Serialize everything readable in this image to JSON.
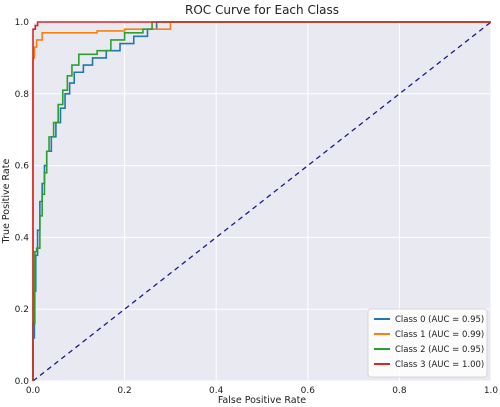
{
  "chart_data": {
    "type": "line",
    "title": "ROC Curve for Each Class",
    "xlabel": "False Positive Rate",
    "ylabel": "True Positive Rate",
    "xlim": [
      0,
      1
    ],
    "ylim": [
      0,
      1
    ],
    "xticks": [
      "0.0",
      "0.2",
      "0.4",
      "0.6",
      "0.8",
      "1.0"
    ],
    "yticks": [
      "0.0",
      "0.2",
      "0.4",
      "0.6",
      "0.8",
      "1.0"
    ],
    "grid": true,
    "legend_position": "lower-right",
    "series": [
      {
        "name": "Class 0 (AUC = 0.95)",
        "color": "#1f77b4",
        "points": [
          [
            0,
            0
          ],
          [
            0,
            0.12
          ],
          [
            0.003,
            0.12
          ],
          [
            0.003,
            0.25
          ],
          [
            0.006,
            0.25
          ],
          [
            0.006,
            0.35
          ],
          [
            0.01,
            0.35
          ],
          [
            0.01,
            0.42
          ],
          [
            0.015,
            0.42
          ],
          [
            0.015,
            0.5
          ],
          [
            0.02,
            0.5
          ],
          [
            0.02,
            0.55
          ],
          [
            0.025,
            0.55
          ],
          [
            0.025,
            0.6
          ],
          [
            0.03,
            0.6
          ],
          [
            0.03,
            0.64
          ],
          [
            0.04,
            0.64
          ],
          [
            0.04,
            0.68
          ],
          [
            0.05,
            0.68
          ],
          [
            0.05,
            0.72
          ],
          [
            0.06,
            0.72
          ],
          [
            0.06,
            0.76
          ],
          [
            0.07,
            0.76
          ],
          [
            0.07,
            0.8
          ],
          [
            0.08,
            0.8
          ],
          [
            0.08,
            0.83
          ],
          [
            0.09,
            0.83
          ],
          [
            0.09,
            0.86
          ],
          [
            0.11,
            0.86
          ],
          [
            0.11,
            0.88
          ],
          [
            0.13,
            0.88
          ],
          [
            0.13,
            0.9
          ],
          [
            0.16,
            0.9
          ],
          [
            0.16,
            0.92
          ],
          [
            0.19,
            0.92
          ],
          [
            0.19,
            0.94
          ],
          [
            0.22,
            0.94
          ],
          [
            0.22,
            0.96
          ],
          [
            0.25,
            0.96
          ],
          [
            0.25,
            0.98
          ],
          [
            0.27,
            0.98
          ],
          [
            0.27,
            1.0
          ],
          [
            1.0,
            1.0
          ]
        ]
      },
      {
        "name": "Class 1 (AUC = 0.99)",
        "color": "#ff7f0e",
        "points": [
          [
            0,
            0
          ],
          [
            0,
            0.9
          ],
          [
            0.003,
            0.9
          ],
          [
            0.003,
            0.93
          ],
          [
            0.008,
            0.93
          ],
          [
            0.008,
            0.95
          ],
          [
            0.02,
            0.95
          ],
          [
            0.02,
            0.97
          ],
          [
            0.14,
            0.97
          ],
          [
            0.14,
            0.975
          ],
          [
            0.2,
            0.975
          ],
          [
            0.2,
            0.98
          ],
          [
            0.3,
            0.98
          ],
          [
            0.3,
            1.0
          ],
          [
            1.0,
            1.0
          ]
        ]
      },
      {
        "name": "Class 2 (AUC = 0.95)",
        "color": "#2ca02c",
        "points": [
          [
            0,
            0
          ],
          [
            0,
            0.16
          ],
          [
            0.004,
            0.16
          ],
          [
            0.004,
            0.36
          ],
          [
            0.008,
            0.36
          ],
          [
            0.008,
            0.37
          ],
          [
            0.015,
            0.37
          ],
          [
            0.015,
            0.46
          ],
          [
            0.02,
            0.46
          ],
          [
            0.02,
            0.52
          ],
          [
            0.025,
            0.52
          ],
          [
            0.025,
            0.58
          ],
          [
            0.03,
            0.58
          ],
          [
            0.03,
            0.64
          ],
          [
            0.035,
            0.64
          ],
          [
            0.035,
            0.68
          ],
          [
            0.045,
            0.68
          ],
          [
            0.045,
            0.72
          ],
          [
            0.055,
            0.72
          ],
          [
            0.055,
            0.77
          ],
          [
            0.065,
            0.77
          ],
          [
            0.065,
            0.81
          ],
          [
            0.075,
            0.81
          ],
          [
            0.075,
            0.85
          ],
          [
            0.085,
            0.85
          ],
          [
            0.085,
            0.88
          ],
          [
            0.1,
            0.88
          ],
          [
            0.1,
            0.91
          ],
          [
            0.14,
            0.91
          ],
          [
            0.14,
            0.92
          ],
          [
            0.17,
            0.92
          ],
          [
            0.17,
            0.95
          ],
          [
            0.2,
            0.95
          ],
          [
            0.2,
            0.97
          ],
          [
            0.24,
            0.97
          ],
          [
            0.24,
            0.98
          ],
          [
            0.26,
            0.98
          ],
          [
            0.26,
            1.0
          ],
          [
            1.0,
            1.0
          ]
        ]
      },
      {
        "name": "Class 3 (AUC = 1.00)",
        "color": "#d62728",
        "points": [
          [
            0,
            0
          ],
          [
            0,
            0.98
          ],
          [
            0.005,
            0.98
          ],
          [
            0.005,
            0.99
          ],
          [
            0.01,
            0.99
          ],
          [
            0.01,
            1.0
          ],
          [
            1.0,
            1.0
          ]
        ]
      }
    ],
    "diagonal": {
      "color": "#1a1a8c",
      "style": "dashed",
      "points": [
        [
          0,
          0
        ],
        [
          1,
          1
        ]
      ]
    }
  }
}
